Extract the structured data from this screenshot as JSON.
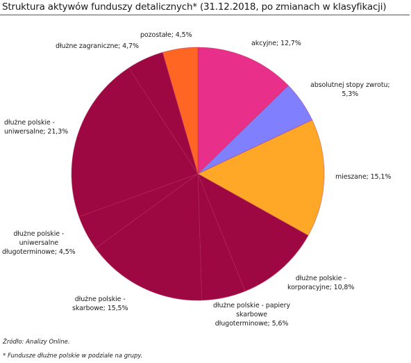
{
  "chart_data": {
    "type": "pie",
    "title": "Struktura aktywów funduszy detalicznych* (31.12.2018, po zmianach w klasyfikacji)",
    "slices": [
      {
        "label": "akcyjne; 12,7%",
        "value": 12.7,
        "color": "#e8308a"
      },
      {
        "label": "absolutnej stopy zwrotu; 5,3%",
        "value": 5.3,
        "color": "#8080ff"
      },
      {
        "label": "mieszane; 15,1%",
        "value": 15.1,
        "color": "#ffa726"
      },
      {
        "label": "dłużne polskie - korporacyjne; 10,8%",
        "value": 10.8,
        "color": "#9e0842"
      },
      {
        "label": "dłużne polskie - papiery skarbowe długoterminowe; 5,6%",
        "value": 5.6,
        "color": "#9e0842"
      },
      {
        "label": "dłużne polskie - skarbowe; 15,5%",
        "value": 15.5,
        "color": "#9e0842"
      },
      {
        "label": "dłużne polskie - uniwersalne długoterminowe; 4,5%",
        "value": 4.5,
        "color": "#9e0842"
      },
      {
        "label": "dłużne polskie - uniwersalne; 21,3%",
        "value": 21.3,
        "color": "#9e0842"
      },
      {
        "label": "dłużne zagraniczne; 4,7%",
        "value": 4.7,
        "color": "#9e0842"
      },
      {
        "label": "pozostałe; 4,5%",
        "value": 4.5,
        "color": "#ff6624"
      }
    ],
    "label_lines": {
      "akcyjne": "akcyjne; 12,7%",
      "asz1": "absolutnej stopy zwrotu;",
      "asz2": "5,3%",
      "mieszane": "mieszane; 15,1%",
      "korp1": "dłużne polskie -",
      "korp2": "korporacyjne; 10,8%",
      "dlugo1": "dłużne polskie - papiery",
      "dlugo2": "skarbowe",
      "dlugo3": "długoterminowe; 5,6%",
      "skarb1": "dłużne polskie -",
      "skarb2": "skarbowe; 15,5%",
      "uniwd1": "dłużne polskie -",
      "uniwd2": "uniwersalne",
      "uniwd3": "długoterminowe; 4,5%",
      "uniw1": "dłużne polskie -",
      "uniw2": "uniwersalne; 21,3%",
      "zagr": "dłużne zagraniczne; 4,7%",
      "pozost": "pozostałe; 4,5%"
    }
  },
  "footer": {
    "source": "Źródło: Analizy Online.",
    "footnote": "* Fundusze dłużne polskie w podziale na grupy."
  }
}
